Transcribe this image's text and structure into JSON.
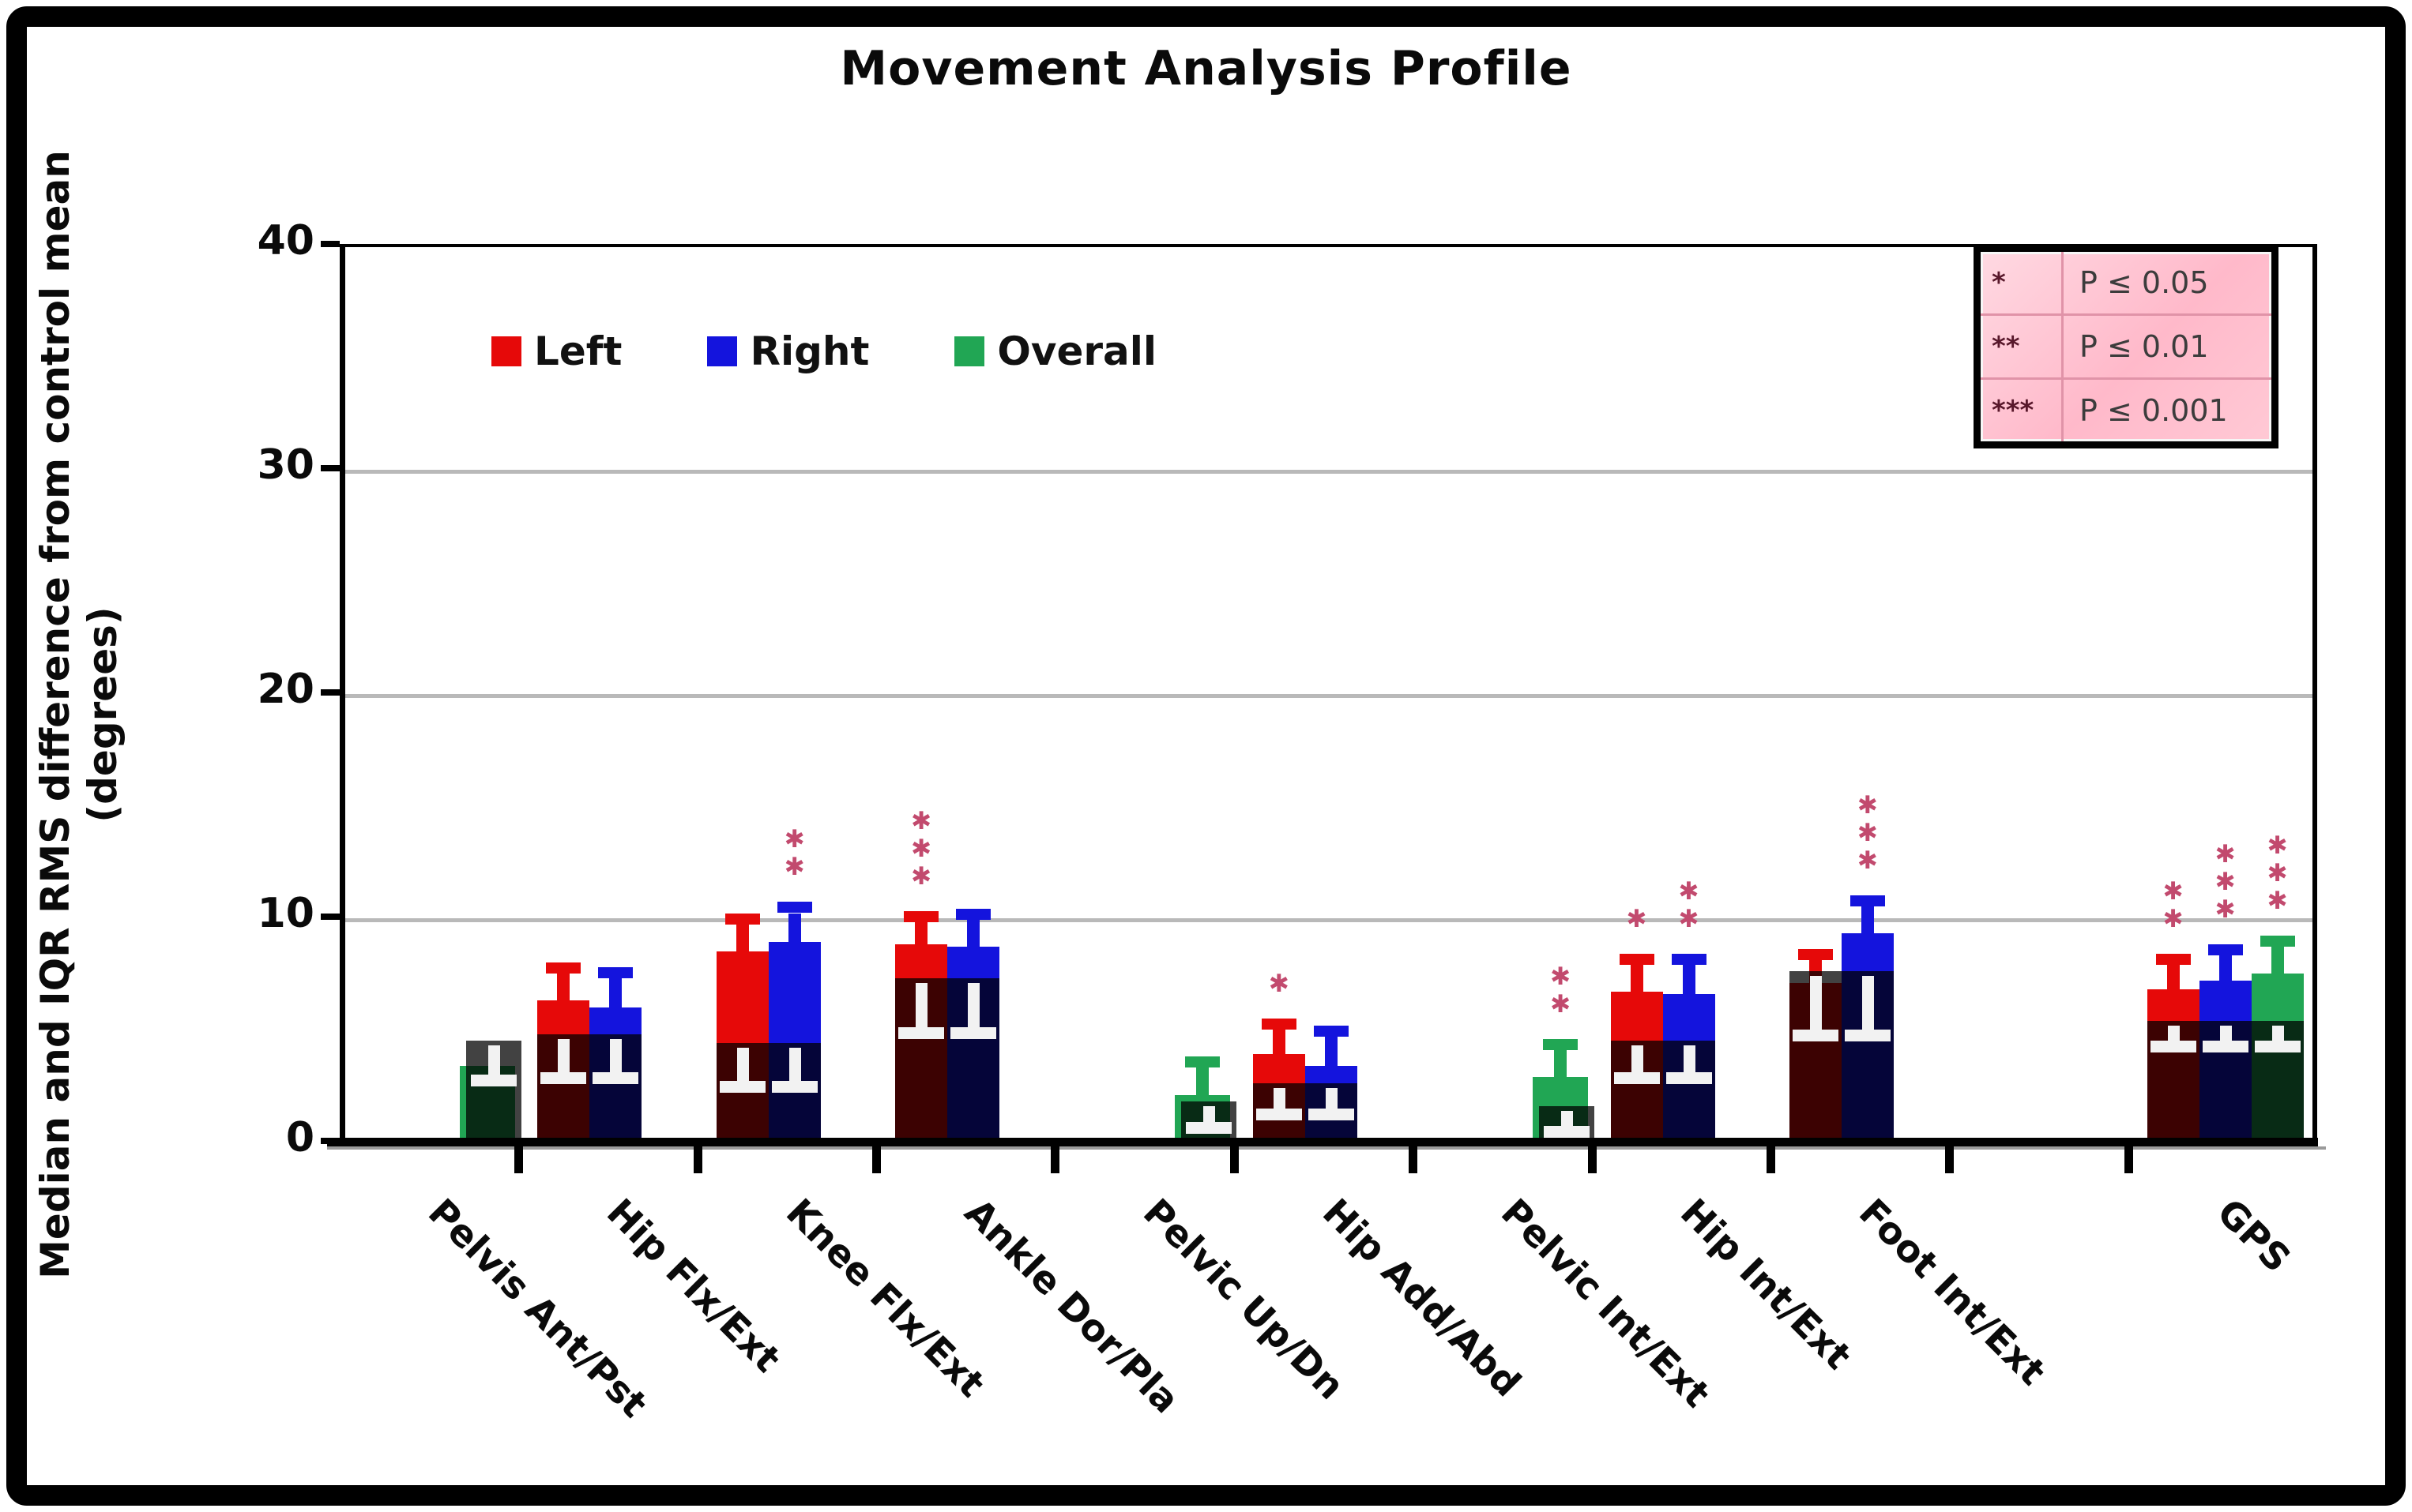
{
  "title": "Movement Analysis Profile",
  "y_axis": {
    "label_line1": "Median and IQR RMS difference from control mean",
    "label_line2": "(degrees)",
    "ticks": [
      0,
      10,
      20,
      30,
      40
    ],
    "max": 40
  },
  "legend": [
    {
      "label": "Left",
      "color": "#e60909"
    },
    {
      "label": "Right",
      "color": "#1414dd"
    },
    {
      "label": "Overall",
      "color": "#21a654"
    }
  ],
  "sig_table": {
    "rows": [
      {
        "stars": "*",
        "label": "P ≤ 0.05"
      },
      {
        "stars": "**",
        "label": "P ≤ 0.01"
      },
      {
        "stars": "***",
        "label": "P ≤ 0.001"
      }
    ]
  },
  "colors": {
    "left": "#e60909",
    "right": "#1414dd",
    "overall": "#21a654",
    "control_overlay": "rgba(0,0,0,0.74)",
    "control_whisker": "#f2f2f2",
    "star": "#c24a6e",
    "grid": "#b9b9b9"
  },
  "chart_data": {
    "type": "bar",
    "title": "Movement Analysis Profile",
    "ylabel": "Median and IQR RMS difference from control mean (degrees)",
    "ylim": [
      0,
      40
    ],
    "gridlines": [
      10,
      20,
      30
    ],
    "legend_position": "top-left",
    "note": "Each category shows patient median bars (Left/Right/Overall) with upper-IQR whiskers and pink significance stars; the dark translucent overlay bar is the control median with a white lower-IQR whisker.",
    "categories": [
      {
        "name": "Pelvis Ant/Pst",
        "slot": 0,
        "control": {
          "median": 4.6,
          "iqr_lo": 3.1
        },
        "bars": [
          {
            "side": "Overall",
            "median": 3.5,
            "iqr_hi": null,
            "sig": ""
          }
        ]
      },
      {
        "name": "Hip Flx/Ext",
        "slot": 1,
        "control": {
          "median": 4.9,
          "iqr_lo": 3.2
        },
        "bars": [
          {
            "side": "Left",
            "median": 6.4,
            "iqr_hi": 7.6,
            "sig": ""
          },
          {
            "side": "Right",
            "median": 6.1,
            "iqr_hi": 7.4,
            "sig": ""
          }
        ]
      },
      {
        "name": "Knee Flx/Ext",
        "slot": 2,
        "control": {
          "median": 4.5,
          "iqr_lo": 2.8
        },
        "bars": [
          {
            "side": "Left",
            "median": 8.6,
            "iqr_hi": 9.8,
            "sig": ""
          },
          {
            "side": "Right",
            "median": 9.0,
            "iqr_hi": 10.3,
            "sig": "**"
          }
        ]
      },
      {
        "name": "Ankle Dor/Pla",
        "slot": 3,
        "control": {
          "median": 7.4,
          "iqr_lo": 5.2
        },
        "bars": [
          {
            "side": "Left",
            "median": 8.9,
            "iqr_hi": 9.9,
            "sig": "***"
          },
          {
            "side": "Right",
            "median": 8.8,
            "iqr_hi": 10.0,
            "sig": ""
          }
        ]
      },
      {
        "name": "Pelvic Up/Dn",
        "slot": 4,
        "control": {
          "median": 1.9,
          "iqr_lo": 1.0
        },
        "bars": [
          {
            "side": "Overall",
            "median": 2.2,
            "iqr_hi": 3.4,
            "sig": ""
          }
        ]
      },
      {
        "name": "Hip Add/Abd",
        "slot": 5,
        "control": {
          "median": 2.7,
          "iqr_lo": 1.6
        },
        "bars": [
          {
            "side": "Left",
            "median": 4.0,
            "iqr_hi": 5.1,
            "sig": "*"
          },
          {
            "side": "Right",
            "median": 3.5,
            "iqr_hi": 4.8,
            "sig": ""
          }
        ]
      },
      {
        "name": "Pelvic Int/Ext",
        "slot": 6,
        "control": {
          "median": 1.7,
          "iqr_lo": 0.8
        },
        "bars": [
          {
            "side": "Overall",
            "median": 3.0,
            "iqr_hi": 4.2,
            "sig": "**"
          }
        ]
      },
      {
        "name": "Hip Int/Ext",
        "slot": 7,
        "control": {
          "median": 4.6,
          "iqr_lo": 3.2
        },
        "bars": [
          {
            "side": "Left",
            "median": 6.8,
            "iqr_hi": 8.0,
            "sig": "*"
          },
          {
            "side": "Right",
            "median": 6.7,
            "iqr_hi": 8.0,
            "sig": "**"
          }
        ]
      },
      {
        "name": "Foot Int/Ext",
        "slot": 8,
        "control": {
          "median": 7.7,
          "iqr_lo": 5.1
        },
        "bars": [
          {
            "side": "Left",
            "median": 7.2,
            "iqr_hi": 8.2,
            "sig": ""
          },
          {
            "side": "Right",
            "median": 9.4,
            "iqr_hi": 10.6,
            "sig": "***"
          }
        ]
      },
      {
        "name": "GPS",
        "slot": 10,
        "control": {
          "median": 5.5,
          "iqr_lo": 4.6
        },
        "bars": [
          {
            "side": "Left",
            "median": 6.9,
            "iqr_hi": 8.0,
            "sig": "**"
          },
          {
            "side": "Right",
            "median": 7.3,
            "iqr_hi": 8.4,
            "sig": "***"
          },
          {
            "side": "Overall",
            "median": 7.6,
            "iqr_hi": 8.8,
            "sig": "***"
          }
        ]
      }
    ]
  }
}
